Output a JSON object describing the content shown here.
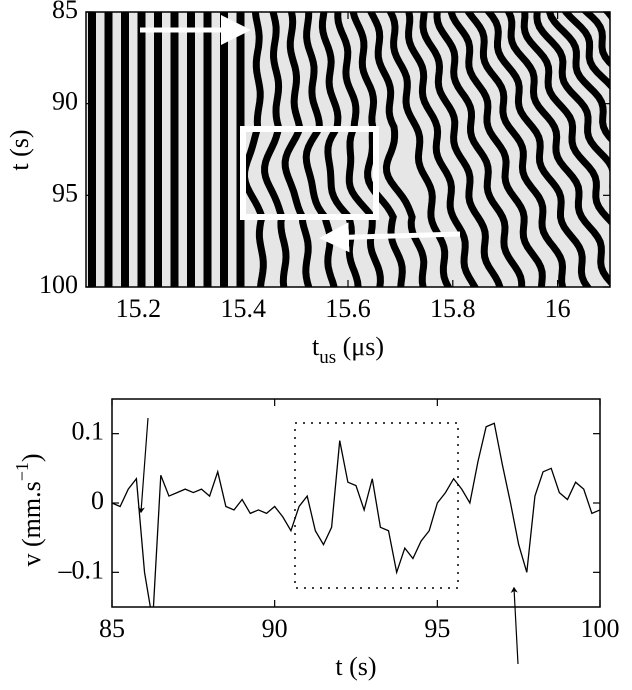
{
  "chart_data": [
    {
      "type": "image",
      "x_label": "t",
      "x_label_sub": "us",
      "x_label_unit": "(μs)",
      "y_label": "t (s)",
      "xlim": [
        15.1,
        16.1
      ],
      "xticks": [
        15.2,
        15.4,
        15.6,
        15.8,
        16
      ],
      "ylim": [
        100,
        85
      ],
      "yticks": [
        85,
        90,
        95,
        100
      ]
    },
    {
      "type": "line",
      "x_label": "t (s)",
      "y_label": "v (mm.s",
      "y_label_sup": "−1",
      "y_label_end": ")",
      "xlim": [
        85,
        100
      ],
      "xticks": [
        85,
        90,
        95,
        100
      ],
      "ylim": [
        -0.15,
        0.15
      ],
      "yticks": [
        {
          "value": -0.1,
          "label": "–0.1"
        },
        0,
        0.1
      ],
      "color": "#000000",
      "x": [
        85,
        85.25,
        85.5,
        85.75,
        86,
        86.25,
        86.5,
        86.75,
        87,
        87.25,
        87.5,
        87.75,
        88,
        88.25,
        88.5,
        88.75,
        89,
        89.25,
        89.5,
        89.75,
        90,
        90.25,
        90.5,
        90.75,
        91,
        91.25,
        91.5,
        91.75,
        92,
        92.25,
        92.5,
        92.75,
        93,
        93.25,
        93.5,
        93.75,
        94,
        94.25,
        94.5,
        94.75,
        95,
        95.25,
        95.5,
        95.75,
        96,
        96.25,
        96.5,
        96.75,
        97,
        97.25,
        97.5,
        97.75,
        98,
        98.25,
        98.5,
        98.75,
        99,
        99.25,
        99.5,
        99.75,
        100
      ],
      "values": [
        0,
        -0.005,
        0.02,
        0.035,
        -0.1,
        -0.17,
        0.04,
        0.01,
        0.015,
        0.02,
        0.015,
        0.02,
        0.01,
        0.045,
        -0.005,
        -0.01,
        0.005,
        -0.015,
        -0.01,
        -0.015,
        -0.005,
        -0.02,
        -0.04,
        -0.005,
        0.01,
        -0.04,
        -0.06,
        -0.035,
        0.09,
        0.03,
        0.025,
        -0.01,
        0.035,
        -0.035,
        -0.04,
        -0.1,
        -0.065,
        -0.08,
        -0.055,
        -0.04,
        0,
        0.015,
        0.035,
        0.02,
        0,
        0.06,
        0.11,
        0.115,
        0.055,
        0,
        -0.06,
        -0.1,
        0.01,
        0.045,
        0.05,
        0.015,
        0.005,
        0.03,
        0.02,
        -0.015,
        -0.01
      ]
    }
  ]
}
